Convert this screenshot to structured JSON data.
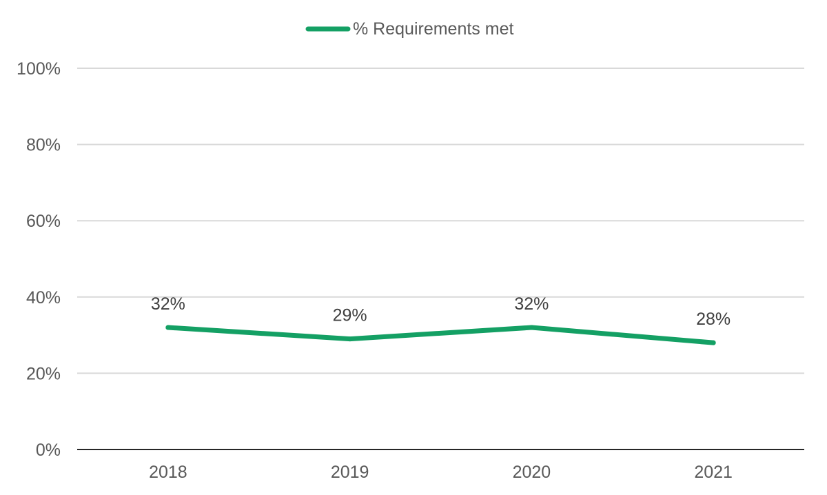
{
  "chart_data": {
    "type": "line",
    "categories": [
      "2018",
      "2019",
      "2020",
      "2021"
    ],
    "series": [
      {
        "name": "% Requirements met",
        "values": [
          0.32,
          0.29,
          0.32,
          0.28
        ],
        "labels": [
          "32%",
          "29%",
          "32%",
          "28%"
        ],
        "color": "#14a064"
      }
    ],
    "ylim": [
      0,
      1
    ],
    "yticks": [
      0,
      0.2,
      0.4,
      0.6,
      0.8,
      1.0
    ],
    "ytick_labels": [
      "0%",
      "20%",
      "40%",
      "60%",
      "80%",
      "100%"
    ],
    "grid": true,
    "legend_position": "top-center",
    "colors": {
      "gridline": "#d9d9d9",
      "baseline": "#262626",
      "tick_text": "#595959",
      "data_label_text": "#404040"
    }
  }
}
